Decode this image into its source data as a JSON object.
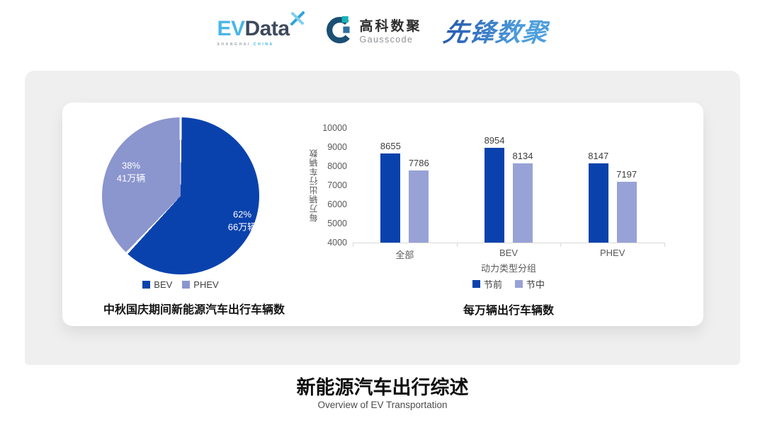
{
  "header": {
    "evdata": {
      "word_ev": "EV",
      "word_data": "Data",
      "tagline_left": "SHANGHAI",
      "tagline_right": "CHINA"
    },
    "gausscode": {
      "name_cn": "高科数聚",
      "name_en": "Gausscode"
    },
    "pioneer": {
      "name": "先锋数聚"
    }
  },
  "chart_data": [
    {
      "type": "pie",
      "title": "中秋国庆期间新能源汽车出行车辆数",
      "legend_position": "bottom",
      "start_angle_deg": 0,
      "direction": "clockwise",
      "slices": [
        {
          "label": "BEV",
          "percent": 62,
          "pct_label": "62%",
          "amount_label": "66万辆",
          "color": "#0a42ad"
        },
        {
          "label": "PHEV",
          "percent": 38,
          "pct_label": "38%",
          "amount_label": "41万辆",
          "color": "#8b95ce"
        }
      ]
    },
    {
      "type": "bar",
      "title": "每万辆出行车辆数",
      "xlabel": "动力类型分组",
      "ylabel": "每万辆出行车辆数",
      "categories": [
        "全部",
        "BEV",
        "PHEV"
      ],
      "series": [
        {
          "name": "节前",
          "color": "#0a42ad",
          "values": [
            8655,
            8954,
            8147
          ]
        },
        {
          "name": "节中",
          "color": "#99a2d6",
          "values": [
            7786,
            8134,
            7197
          ]
        }
      ],
      "ylim": [
        4000,
        10000
      ],
      "ytick_step": 1000,
      "grid": false,
      "legend_position": "bottom"
    }
  ],
  "footer": {
    "title": "新能源汽车出行综述",
    "subtitle": "Overview of EV Transportation"
  },
  "colors": {
    "accent_dark_blue": "#0a42ad",
    "accent_light_blue": "#99a2d6",
    "pie_light_blue": "#8b95ce",
    "panel_bg": "#efeff0",
    "axis_line": "#d9d9d9"
  }
}
